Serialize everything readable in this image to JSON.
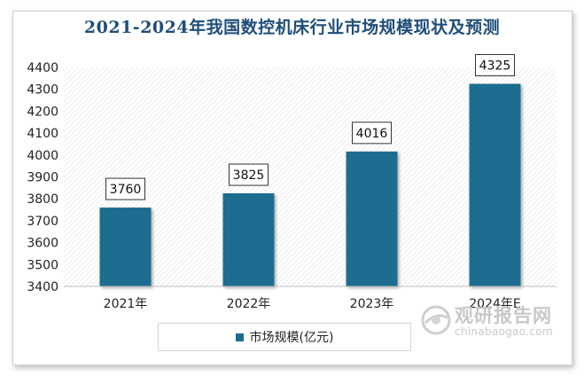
{
  "chart_data": {
    "type": "bar",
    "title": "2021-2024年我国数控机床行业市场规模现状及预测",
    "categories": [
      "2021年",
      "2022年",
      "2023年",
      "2024年E"
    ],
    "series": [
      {
        "name": "市场规模(亿元)",
        "values": [
          3760,
          3825,
          4016,
          4325
        ]
      }
    ],
    "ylim": [
      3400,
      4400
    ],
    "yticks": [
      3400,
      3500,
      3600,
      3700,
      3800,
      3900,
      4000,
      4100,
      4200,
      4300,
      4400
    ],
    "data_labels": [
      "3760",
      "3825",
      "4016",
      "4325"
    ],
    "legend_position": "bottom",
    "grid": false,
    "bar_color": "#1b6d8f"
  },
  "watermark": {
    "name_cn": "观研报告网",
    "site": "chinabaogao.com",
    "icon": "globe-logo-icon"
  }
}
